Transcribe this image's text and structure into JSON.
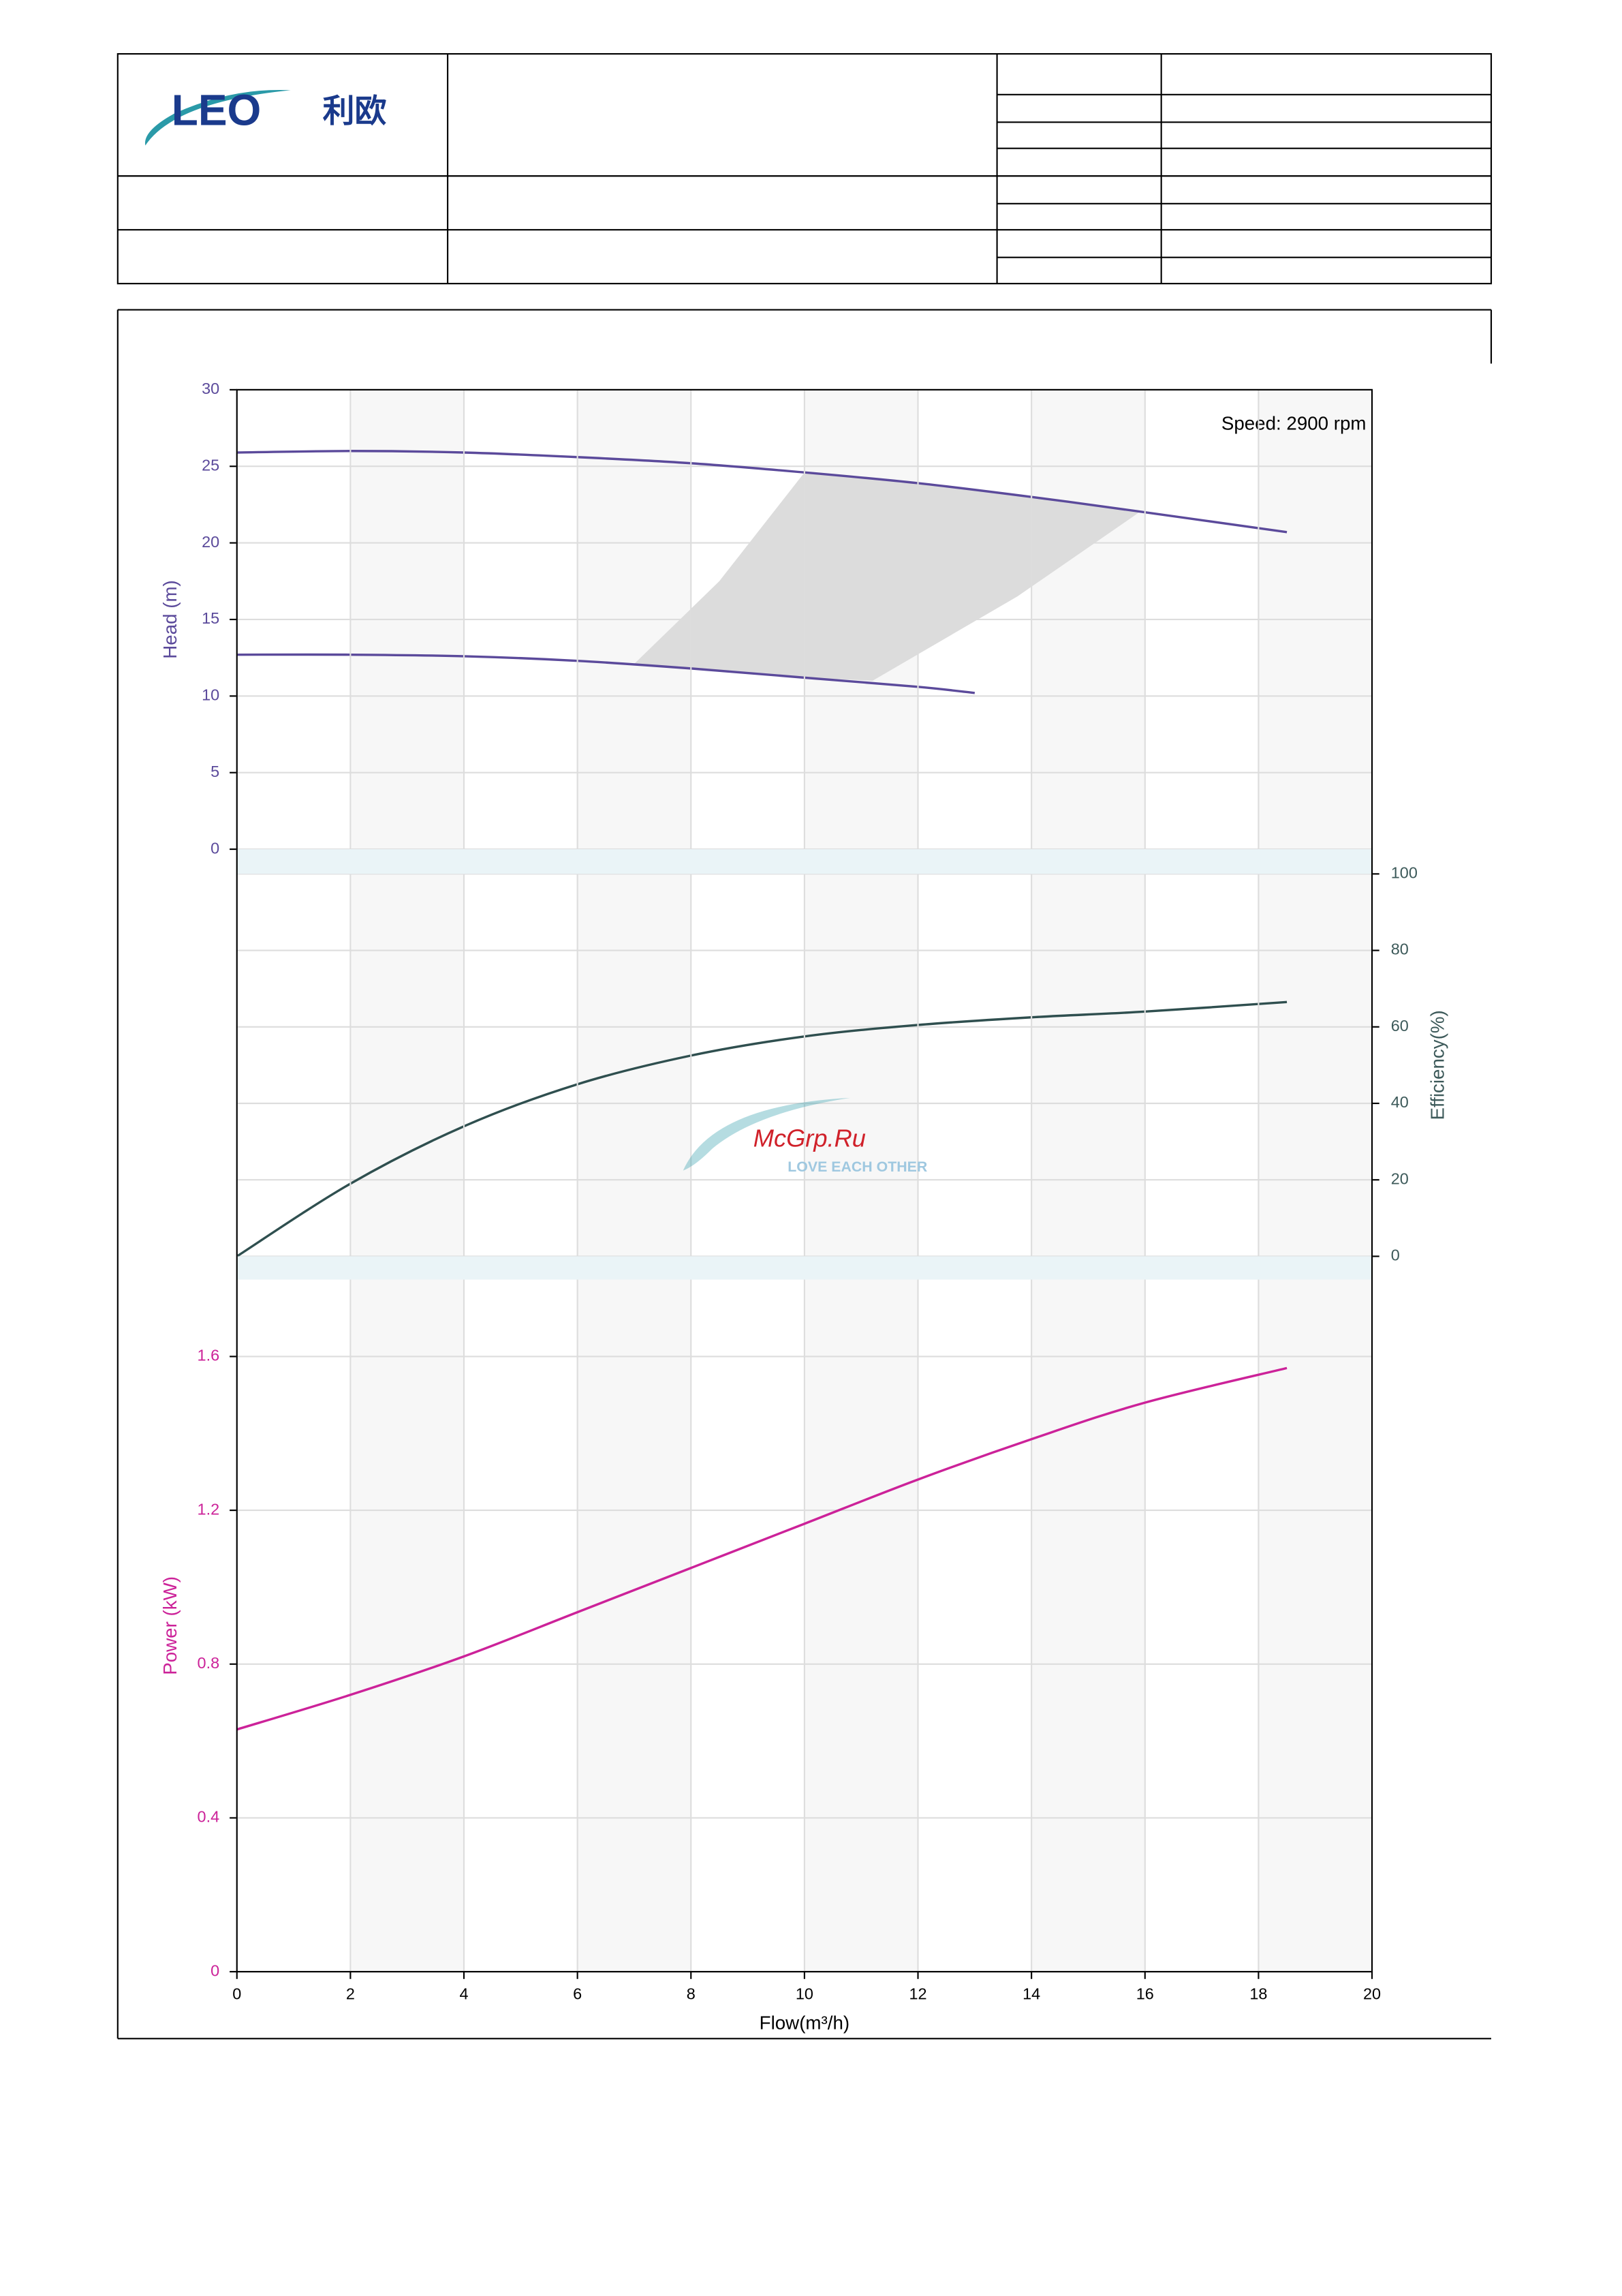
{
  "header": {
    "logo_latin": "LEO",
    "logo_cn": "利欧"
  },
  "watermark": {
    "site": "McGrp.Ru",
    "tagline": "LOVE EACH OTHER"
  },
  "chart_data": [
    {
      "type": "line",
      "annotation": "Speed: 2900 rpm",
      "y_label": "Head (m)",
      "y_axis_side": "left",
      "axis_color": "#5b4a9b",
      "xlim": [
        0,
        20
      ],
      "ylim": [
        0,
        30
      ],
      "yticks": [
        0,
        5,
        10,
        15,
        20,
        25,
        30
      ],
      "grid": true,
      "series": [
        {
          "color": "#5b4a9b",
          "x": [
            0,
            2,
            4,
            6,
            8,
            10,
            12,
            14,
            16,
            18.5
          ],
          "values": [
            25.9,
            26.0,
            25.9,
            25.6,
            25.2,
            24.6,
            23.9,
            23.0,
            22.0,
            20.7
          ]
        },
        {
          "color": "#5b4a9b",
          "x": [
            0,
            2,
            4,
            6,
            8,
            10,
            12,
            13
          ],
          "values": [
            12.7,
            12.7,
            12.6,
            12.3,
            11.8,
            11.2,
            10.6,
            10.2
          ]
        }
      ],
      "region": {
        "color": "#dcdcdc",
        "x": [
          7,
          8.5,
          10,
          12,
          14,
          15.9,
          13.75,
          11.2,
          10,
          8
        ],
        "y": [
          12.1,
          17.5,
          24.6,
          23.9,
          23.0,
          22.0,
          16.5,
          11.0,
          11.2,
          11.8
        ]
      }
    },
    {
      "type": "line",
      "y_label": "Efficiency(%)",
      "y_axis_side": "right",
      "axis_color": "#3d5a5a",
      "xlim": [
        0,
        20
      ],
      "ylim": [
        0,
        100
      ],
      "yticks": [
        0,
        20,
        40,
        60,
        80,
        100
      ],
      "grid": true,
      "series": [
        {
          "color": "#2f4f4f",
          "x": [
            0,
            2,
            4,
            6,
            8,
            10,
            12,
            14,
            16,
            18.5
          ],
          "values": [
            0,
            19,
            34,
            45,
            52.5,
            57.5,
            60.5,
            62.5,
            64,
            66.5
          ]
        }
      ]
    },
    {
      "type": "line",
      "y_label": "Power (kW)",
      "x_label": "Flow(m³/h)",
      "y_axis_side": "left",
      "axis_color": "#cc2299",
      "xlim": [
        0,
        20
      ],
      "ylim": [
        0,
        1.8
      ],
      "xticks": [
        0,
        2,
        4,
        6,
        8,
        10,
        12,
        14,
        16,
        18,
        20
      ],
      "yticks": [
        0,
        0.4,
        0.8,
        1.2,
        1.6
      ],
      "grid": true,
      "series": [
        {
          "color": "#cc2299",
          "x": [
            0,
            2,
            4,
            6,
            8,
            10,
            12,
            14,
            16,
            18.5
          ],
          "values": [
            0.63,
            0.72,
            0.82,
            0.935,
            1.05,
            1.165,
            1.28,
            1.385,
            1.48,
            1.57
          ]
        }
      ]
    }
  ]
}
